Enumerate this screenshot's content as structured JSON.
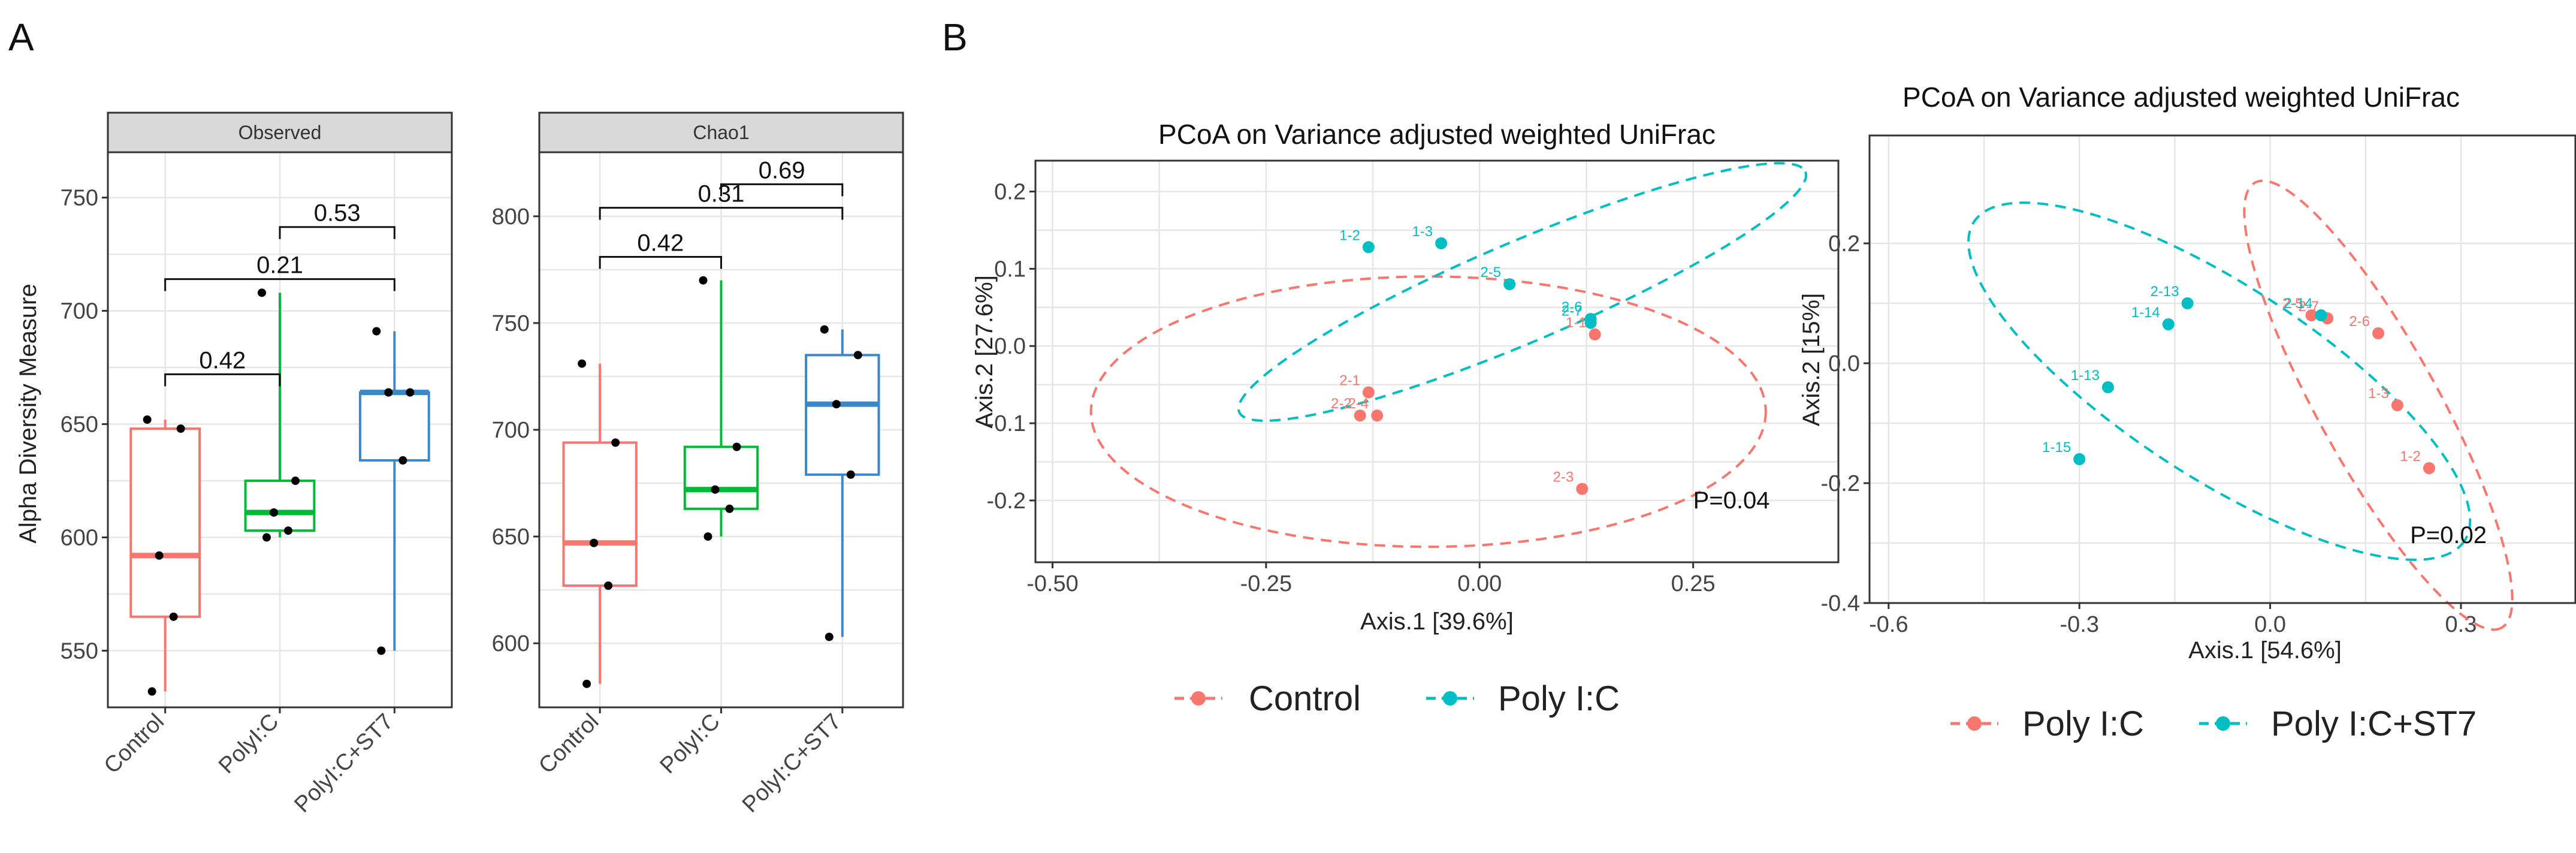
{
  "figure": {
    "panel_a_letter": "A",
    "panel_b_letter": "B"
  },
  "colors": {
    "control": "#f8766d",
    "polyic": "#00ba38",
    "polyic_st7": "#3a88c8",
    "teal": "#00bfc4",
    "salmon": "#f8766d"
  },
  "chart_data": [
    {
      "type": "box",
      "panel": "A",
      "facet": "Observed",
      "ylabel": "Alpha Diversity Measure",
      "categories": [
        "Control",
        "PolyI:C",
        "PolyI:C+ST7"
      ],
      "ylim": [
        525,
        770
      ],
      "yticks": [
        550,
        600,
        650,
        700,
        750
      ],
      "boxes": [
        {
          "group": "Control",
          "q1": 565,
          "median": 592,
          "q3": 648,
          "whisker_low": 532,
          "whisker_high": 652,
          "points": [
            532,
            565,
            592,
            648,
            652
          ]
        },
        {
          "group": "PolyI:C",
          "q1": 603,
          "median": 611,
          "q3": 625,
          "whisker_low": 600,
          "whisker_high": 708,
          "points": [
            600,
            603,
            611,
            625,
            708
          ]
        },
        {
          "group": "PolyI:C+ST7",
          "q1": 634,
          "median": 664,
          "q3": 664,
          "whisker_low": 550,
          "whisker_high": 691,
          "points": [
            550,
            634,
            664,
            664,
            691
          ]
        }
      ],
      "comparisons": [
        {
          "from": "Control",
          "to": "PolyI:C",
          "label": "0.42",
          "y": 672
        },
        {
          "from": "Control",
          "to": "PolyI:C+ST7",
          "label": "0.21",
          "y": 714
        },
        {
          "from": "PolyI:C",
          "to": "PolyI:C+ST7",
          "label": "0.53",
          "y": 737
        }
      ]
    },
    {
      "type": "box",
      "panel": "A",
      "facet": "Chao1",
      "categories": [
        "Control",
        "PolyI:C",
        "PolyI:C+ST7"
      ],
      "ylim": [
        570,
        830
      ],
      "yticks": [
        600,
        650,
        700,
        750,
        800
      ],
      "boxes": [
        {
          "group": "Control",
          "q1": 627,
          "median": 647,
          "q3": 694,
          "whisker_low": 581,
          "whisker_high": 731,
          "points": [
            581,
            627,
            647,
            694,
            731
          ]
        },
        {
          "group": "PolyI:C",
          "q1": 663,
          "median": 672,
          "q3": 692,
          "whisker_low": 650,
          "whisker_high": 770,
          "points": [
            650,
            663,
            672,
            692,
            770
          ]
        },
        {
          "group": "PolyI:C+ST7",
          "q1": 679,
          "median": 712,
          "q3": 735,
          "whisker_low": 603,
          "whisker_high": 747,
          "points": [
            603,
            679,
            712,
            735,
            747
          ]
        }
      ],
      "comparisons": [
        {
          "from": "Control",
          "to": "PolyI:C",
          "label": "0.42",
          "y": 781
        },
        {
          "from": "Control",
          "to": "PolyI:C+ST7",
          "label": "0.31",
          "y": 804
        },
        {
          "from": "PolyI:C",
          "to": "PolyI:C+ST7",
          "label": "0.69",
          "y": 815
        }
      ]
    },
    {
      "type": "scatter",
      "panel": "B",
      "title": "PCoA on Variance adjusted weighted UniFrac",
      "xlabel": "Axis.1   [39.6%]",
      "ylabel": "Axis.2   [27.6%]",
      "xlim": [
        -0.52,
        0.42
      ],
      "ylim": [
        -0.28,
        0.24
      ],
      "xticks": [
        "-0.50",
        "-0.25",
        "0.00",
        "0.25"
      ],
      "xtick_values": [
        -0.5,
        -0.25,
        0,
        0.25
      ],
      "yticks": [
        "0.2",
        "0.1",
        "0.0",
        "-0.1",
        "-0.2"
      ],
      "ytick_values": [
        0.2,
        0.1,
        0,
        -0.1,
        -0.2
      ],
      "annotation": "P=0.04",
      "annotation_pos": [
        0.25,
        -0.21
      ],
      "series": [
        {
          "name": "Control",
          "color": "#f8766d",
          "points": [
            {
              "label": "1-1",
              "x": 0.135,
              "y": 0.015
            },
            {
              "label": "2-1",
              "x": -0.13,
              "y": -0.06
            },
            {
              "label": "2-2",
              "x": -0.14,
              "y": -0.09
            },
            {
              "label": "2-4",
              "x": -0.12,
              "y": -0.09
            },
            {
              "label": "2-3",
              "x": 0.12,
              "y": -0.185
            }
          ],
          "ellipse": {
            "cx": -0.06,
            "cy": -0.085,
            "rx": 0.395,
            "ry": 0.175,
            "angle_deg": 0
          }
        },
        {
          "name": "Poly I:C",
          "color": "#00bfc4",
          "points": [
            {
              "label": "1-2",
              "x": -0.13,
              "y": 0.128
            },
            {
              "label": "1-3",
              "x": -0.045,
              "y": 0.133
            },
            {
              "label": "2-5",
              "x": 0.035,
              "y": 0.08
            },
            {
              "label": "2-6",
              "x": 0.13,
              "y": 0.035
            },
            {
              "label": "2-7",
              "x": 0.13,
              "y": 0.03
            }
          ],
          "ellipse": {
            "cx": 0.05,
            "cy": 0.07,
            "rx": 0.36,
            "ry": 0.065,
            "angle_deg": -23
          }
        }
      ],
      "legend": [
        "Control",
        "Poly I:C"
      ]
    },
    {
      "type": "scatter",
      "panel": "B",
      "title": "PCoA on Variance adjusted weighted UniFrac",
      "xlabel": "Axis.1   [54.6%]",
      "ylabel": "Axis.2   [15%]",
      "xlim": [
        -0.63,
        0.48
      ],
      "ylim": [
        -0.4,
        0.38
      ],
      "xticks": [
        "-0.6",
        "-0.3",
        "0.0",
        "0.3"
      ],
      "xtick_values": [
        -0.6,
        -0.3,
        0,
        0.3
      ],
      "yticks": [
        "0.2",
        "0.0",
        "-0.2",
        "-0.4"
      ],
      "ytick_values": [
        0.2,
        0,
        -0.2,
        -0.4
      ],
      "annotation": "P=0.02",
      "annotation_pos": [
        0.22,
        -0.3
      ],
      "series": [
        {
          "name": "Poly I:C",
          "color": "#f8766d",
          "points": [
            {
              "label": "2-5",
              "x": 0.065,
              "y": 0.08
            },
            {
              "label": "2-7",
              "x": 0.09,
              "y": 0.075
            },
            {
              "label": "2-6",
              "x": 0.17,
              "y": 0.05
            },
            {
              "label": "1-3",
              "x": 0.2,
              "y": -0.07
            },
            {
              "label": "1-2",
              "x": 0.25,
              "y": -0.175
            }
          ],
          "ellipse": {
            "cx": 0.17,
            "cy": -0.07,
            "rx": 0.4,
            "ry": 0.1,
            "angle_deg": 61
          }
        },
        {
          "name": "Poly I:C+ST7",
          "color": "#00bfc4",
          "points": [
            {
              "label": "2-13",
              "x": -0.13,
              "y": 0.1
            },
            {
              "label": "2-14",
              "x": 0.08,
              "y": 0.08
            },
            {
              "label": "1-14",
              "x": -0.16,
              "y": 0.065
            },
            {
              "label": "1-13",
              "x": -0.255,
              "y": -0.04
            },
            {
              "label": "1-15",
              "x": -0.3,
              "y": -0.16
            }
          ],
          "ellipse": {
            "cx": -0.08,
            "cy": -0.03,
            "rx": 0.46,
            "ry": 0.16,
            "angle_deg": 33
          }
        }
      ],
      "legend": [
        "Poly I:C",
        "Poly I:C+ST7"
      ]
    }
  ]
}
